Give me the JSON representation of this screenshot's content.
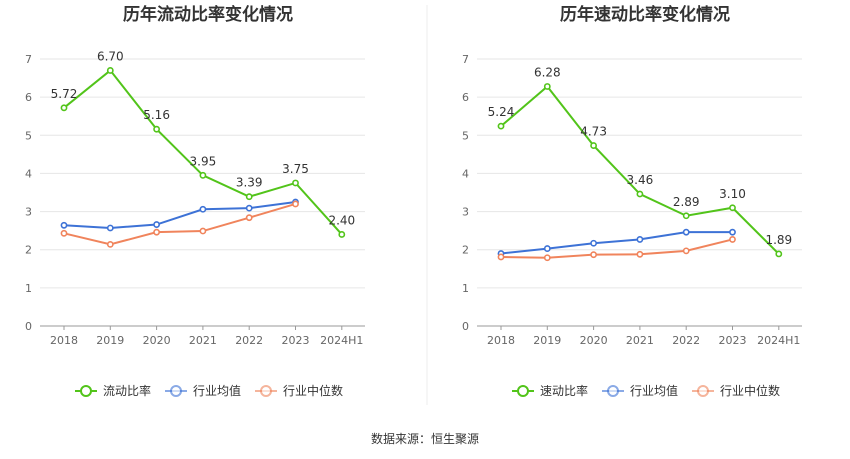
{
  "chart_data": [
    {
      "type": "line",
      "title": "历年流动比率变化情况",
      "categories": [
        "2018",
        "2019",
        "2020",
        "2021",
        "2022",
        "2023",
        "2024H1"
      ],
      "ylim": [
        0,
        7
      ],
      "yticks": [
        "0",
        "1",
        "2",
        "3",
        "4",
        "5",
        "6",
        "7"
      ],
      "grid": true,
      "legend_position": "bottom",
      "series": [
        {
          "name": "流动比率",
          "color": "#52c41a",
          "labels": true,
          "values": [
            5.72,
            6.7,
            5.16,
            3.95,
            3.39,
            3.75,
            2.4
          ],
          "value_labels": [
            "5.72",
            "6.70",
            "5.16",
            "3.95",
            "3.39",
            "3.75",
            "2.40"
          ]
        },
        {
          "name": "行业均值",
          "color": "#3d72d6",
          "values": [
            2.64,
            2.57,
            2.66,
            3.06,
            3.09,
            3.25,
            null
          ]
        },
        {
          "name": "行业中位数",
          "color": "#f0845c",
          "values": [
            2.43,
            2.14,
            2.46,
            2.49,
            2.84,
            3.2,
            null
          ]
        }
      ]
    },
    {
      "type": "line",
      "title": "历年速动比率变化情况",
      "categories": [
        "2018",
        "2019",
        "2020",
        "2021",
        "2022",
        "2023",
        "2024H1"
      ],
      "ylim": [
        0,
        7
      ],
      "yticks": [
        "0",
        "1",
        "2",
        "3",
        "4",
        "5",
        "6",
        "7"
      ],
      "grid": true,
      "legend_position": "bottom",
      "series": [
        {
          "name": "速动比率",
          "color": "#52c41a",
          "labels": true,
          "values": [
            5.24,
            6.28,
            4.73,
            3.46,
            2.89,
            3.1,
            1.89
          ],
          "value_labels": [
            "5.24",
            "6.28",
            "4.73",
            "3.46",
            "2.89",
            "3.10",
            "1.89"
          ]
        },
        {
          "name": "行业均值",
          "color": "#3d72d6",
          "values": [
            1.9,
            2.03,
            2.17,
            2.27,
            2.46,
            2.46,
            null
          ]
        },
        {
          "name": "行业中位数",
          "color": "#f0845c",
          "values": [
            1.81,
            1.79,
            1.87,
            1.88,
            1.97,
            2.27,
            null
          ]
        }
      ]
    }
  ],
  "source_text": "数据来源：恒生聚源"
}
